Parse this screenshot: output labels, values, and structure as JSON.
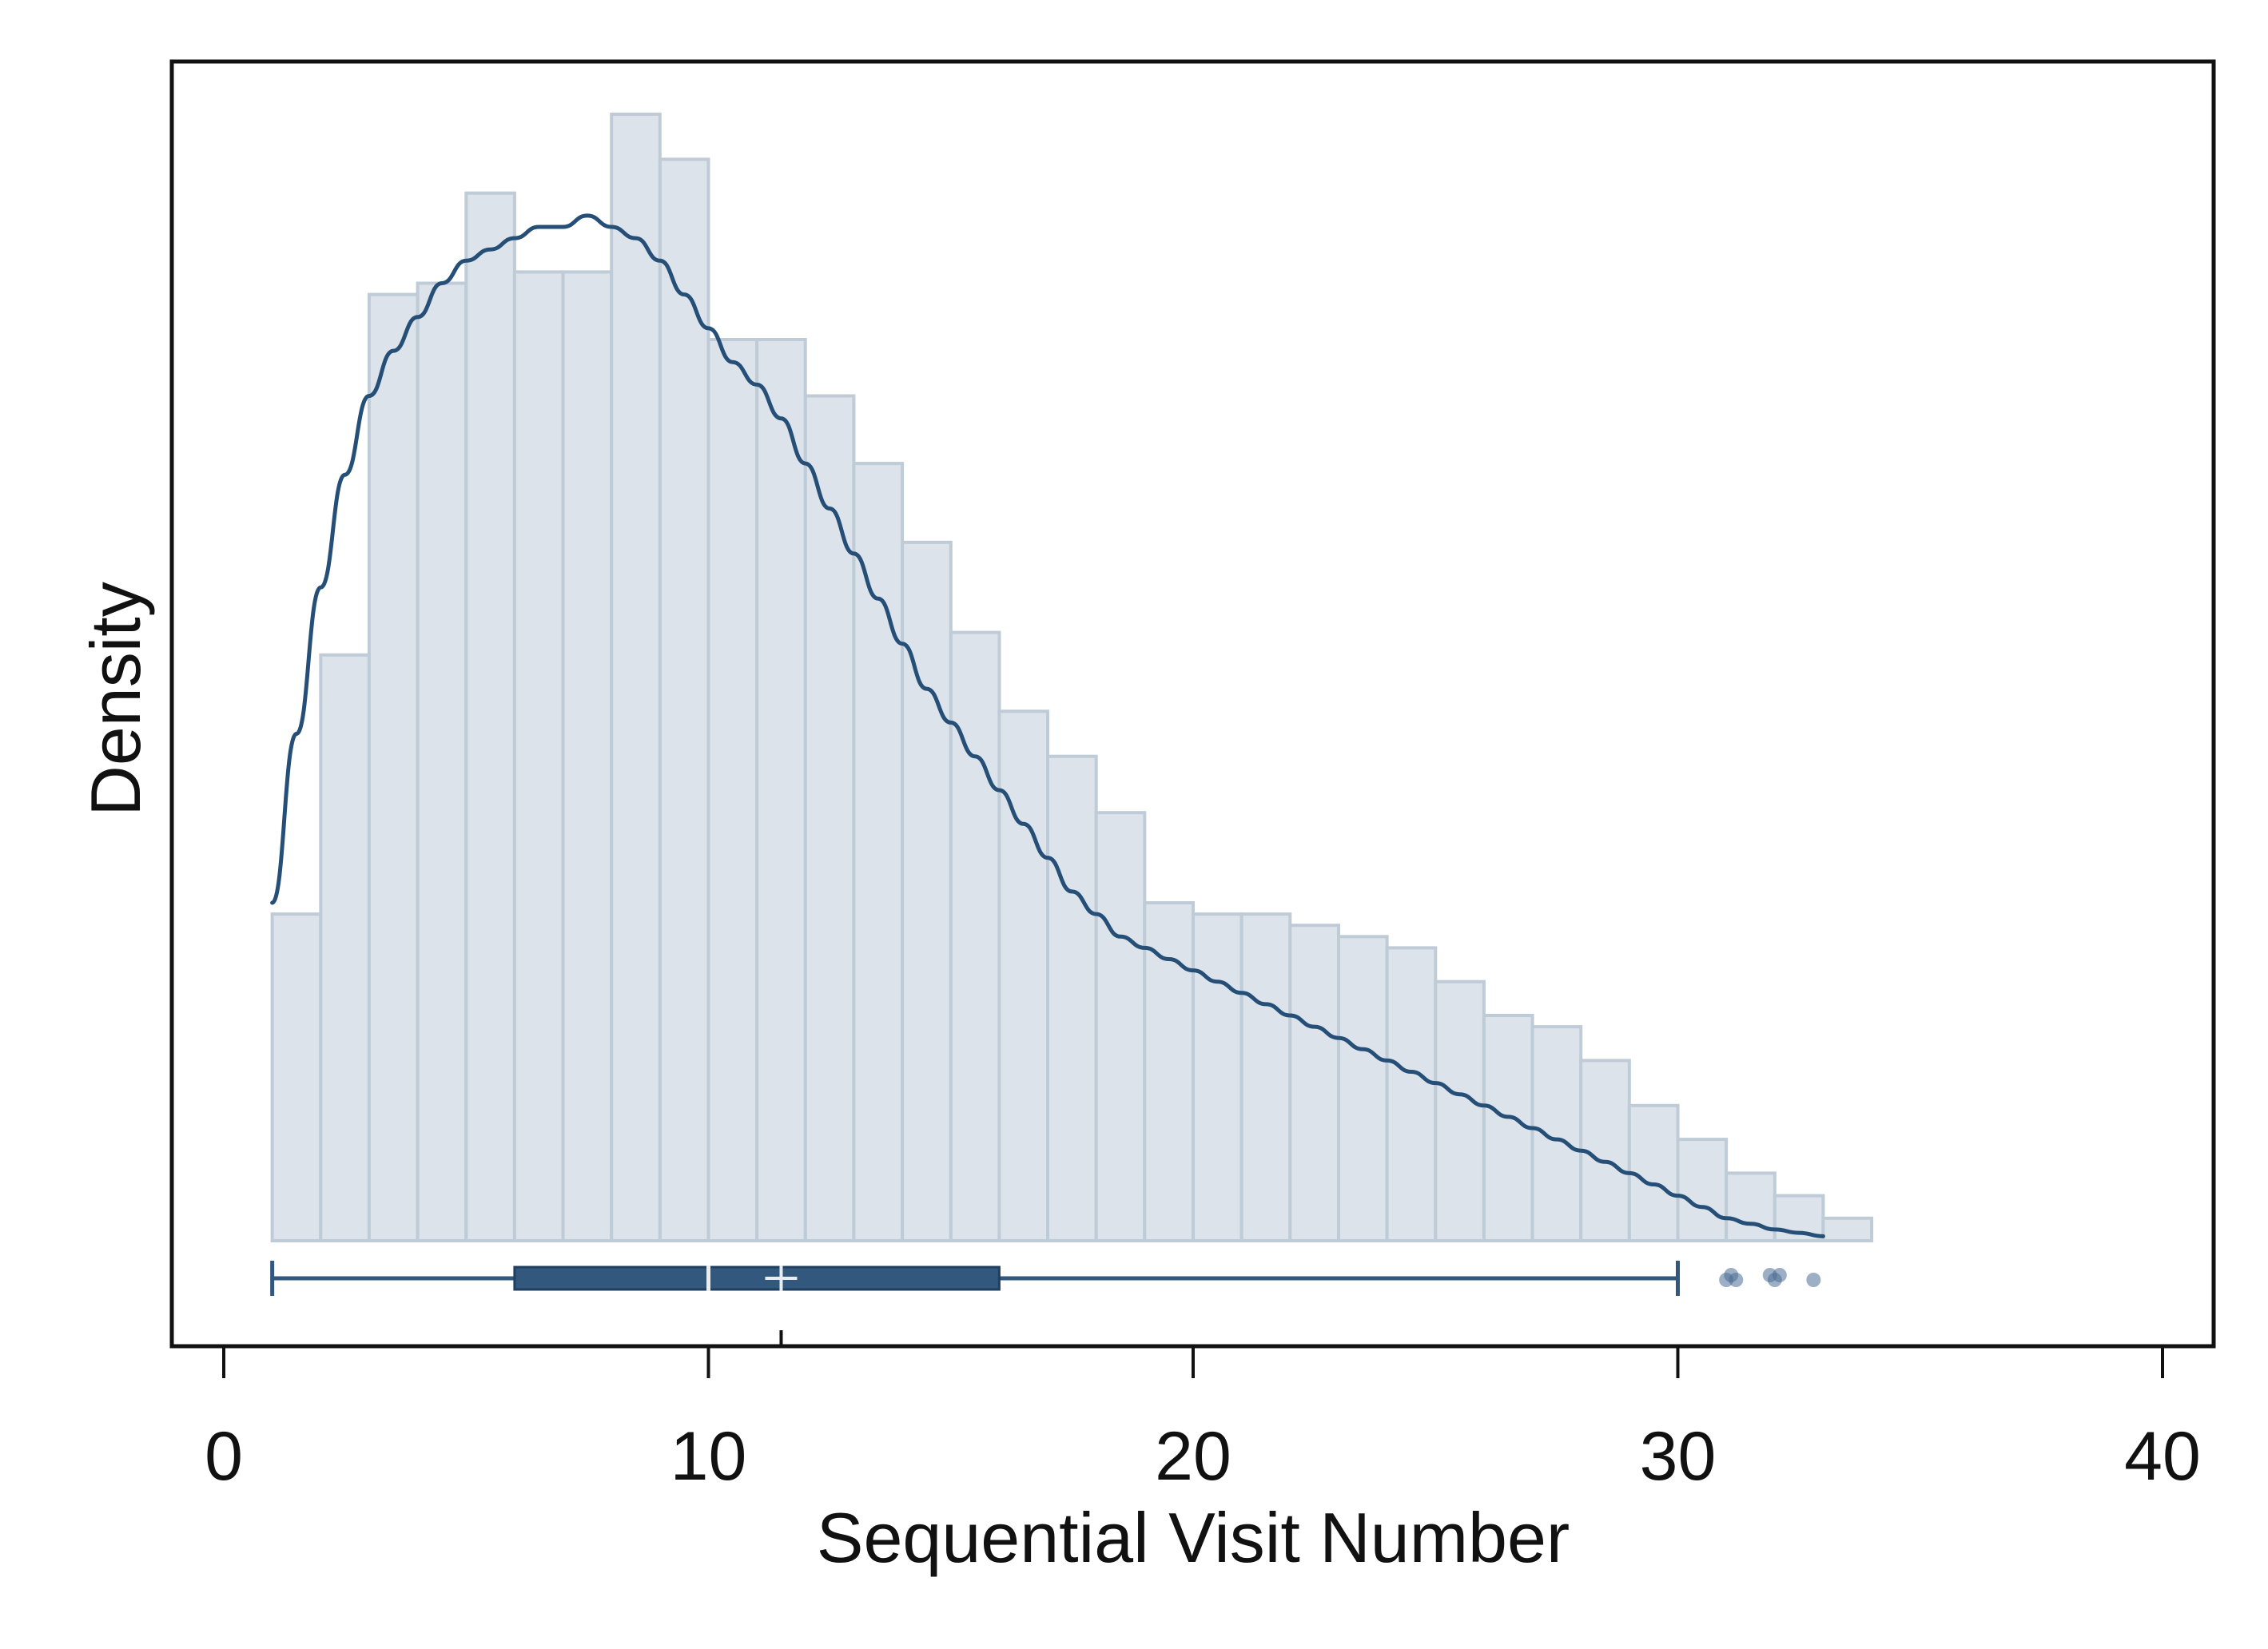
{
  "chart_data": {
    "type": "histogram",
    "xlabel": "Sequential Visit Number",
    "ylabel": "Density",
    "xlim": [
      -1,
      41
    ],
    "x_ticks": [
      0,
      10,
      20,
      30,
      40
    ],
    "y_ticks_shown": false,
    "grid": false,
    "colors": {
      "bar_fill": "#dce3ea",
      "bar_edge": "#bfcbd6",
      "kde_line": "#264f78",
      "box": "#33587e",
      "outlier": "#4a6d93"
    },
    "histogram": {
      "bin_width": 1,
      "bin_start": 1,
      "relative_heights": [
        0.29,
        0.52,
        0.84,
        0.85,
        0.93,
        0.86,
        0.86,
        1.0,
        0.96,
        0.8,
        0.8,
        0.75,
        0.69,
        0.62,
        0.54,
        0.47,
        0.43,
        0.38,
        0.3,
        0.29,
        0.29,
        0.28,
        0.27,
        0.26,
        0.23,
        0.2,
        0.19,
        0.16,
        0.12,
        0.09,
        0.06,
        0.04,
        0.02
      ]
    },
    "kde": {
      "x": [
        1.0,
        1.5,
        2.0,
        2.5,
        3.0,
        3.5,
        4.0,
        4.5,
        5.0,
        5.5,
        6.0,
        6.5,
        7.0,
        7.5,
        8.0,
        8.5,
        9.0,
        9.5,
        10.0,
        10.5,
        11.0,
        11.5,
        12.0,
        12.5,
        13.0,
        13.5,
        14.0,
        14.5,
        15.0,
        15.5,
        16.0,
        16.5,
        17.0,
        17.5,
        18.0,
        18.5,
        19.0,
        19.5,
        20.0,
        20.5,
        21.0,
        21.5,
        22.0,
        22.5,
        23.0,
        23.5,
        24.0,
        24.5,
        25.0,
        25.5,
        26.0,
        26.5,
        27.0,
        27.5,
        28.0,
        28.5,
        29.0,
        29.5,
        30.0,
        30.5,
        31.0,
        31.5,
        32.0,
        32.5,
        33.0
      ],
      "y": [
        0.3,
        0.45,
        0.58,
        0.68,
        0.75,
        0.79,
        0.82,
        0.85,
        0.87,
        0.88,
        0.89,
        0.9,
        0.9,
        0.91,
        0.9,
        0.89,
        0.87,
        0.84,
        0.81,
        0.78,
        0.76,
        0.73,
        0.69,
        0.65,
        0.61,
        0.57,
        0.53,
        0.49,
        0.46,
        0.43,
        0.4,
        0.37,
        0.34,
        0.31,
        0.29,
        0.27,
        0.26,
        0.25,
        0.24,
        0.23,
        0.22,
        0.21,
        0.2,
        0.19,
        0.18,
        0.17,
        0.16,
        0.15,
        0.14,
        0.13,
        0.12,
        0.11,
        0.1,
        0.09,
        0.08,
        0.07,
        0.06,
        0.05,
        0.04,
        0.03,
        0.02,
        0.015,
        0.01,
        0.007,
        0.004
      ]
    },
    "boxplot": {
      "whisker_low": 1,
      "q1": 6,
      "median": 10,
      "mean": 11.5,
      "q3": 16,
      "whisker_high": 30,
      "outliers": [
        31,
        31.1,
        31.2,
        31.9,
        32,
        32.1,
        32.8
      ]
    }
  }
}
